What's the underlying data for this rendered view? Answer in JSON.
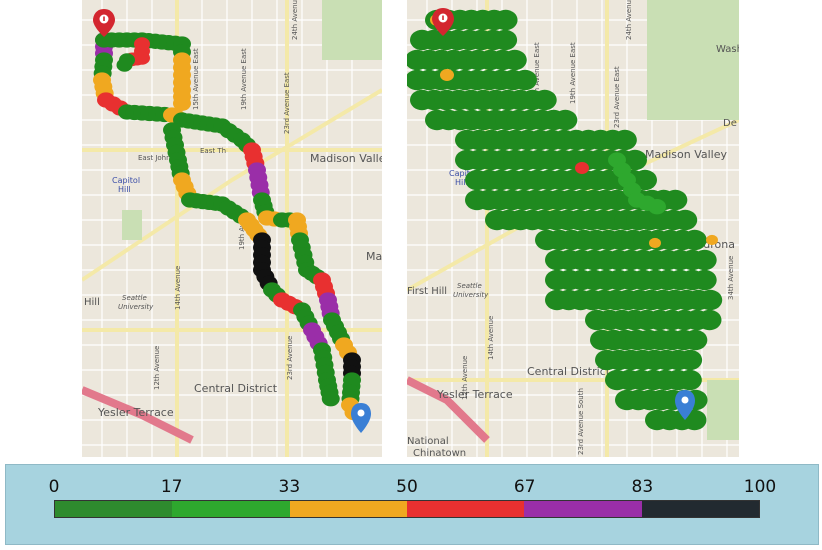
{
  "maps": {
    "left": {
      "labels": {
        "madison_valley": "Madison Valle",
        "capitol_hill": "Capitol",
        "capitol_hill_2": "Hill",
        "east_john": "East John",
        "east_thomas": "East Th",
        "hill": "Hill",
        "seattle_univ_1": "Seattle",
        "seattle_univ_2": "University",
        "central_district": "Central District",
        "yesler_terrace": "Yesler Terrace",
        "mad_edge": "Ma",
        "ave_15": "15th Avenue East",
        "ave_19": "19th Avenue East",
        "ave_23": "23rd Avenue East",
        "ave_24": "24th Avenue",
        "ave_14": "14th Avenue",
        "ave_12": "12th Avenue",
        "ave_19b": "19th Ave",
        "ave_23b": "23rd Avenue"
      }
    },
    "right": {
      "labels": {
        "washington_edge": "Wash",
        "madison_valley": "Madison Valley",
        "capitol_hill": "Capitol",
        "capitol_hill_2": "Hill",
        "first_hill": "First Hill",
        "seattle_univ_1": "Seattle",
        "seattle_univ_2": "University",
        "central_district": "Central District",
        "yesler_terrace": "Yesler Terrace",
        "madrona": "Madrona",
        "national": "National",
        "chinatown": "Chinatown",
        "de_edge": "De",
        "ave_15": "15th Avenue East",
        "ave_19": "19th Avenue East",
        "ave_23": "23rd Avenue East",
        "ave_24": "24th Avenue",
        "ave_34": "34th Avenue",
        "ave_14": "14th Avenue",
        "ave_12": "12th Avenue",
        "ave_23b": "23rd Avenue South"
      }
    }
  },
  "markers": {
    "start_icon": "start-marker-icon",
    "end_icon": "end-marker-icon"
  },
  "legend": {
    "ticks": [
      "0",
      "17",
      "33",
      "50",
      "67",
      "83",
      "100"
    ],
    "min": 0,
    "max": 100,
    "colors": [
      "#2e8b2e",
      "#2ea82e",
      "#f0a820",
      "#e83030",
      "#9a2ea8",
      "#222a30"
    ]
  }
}
